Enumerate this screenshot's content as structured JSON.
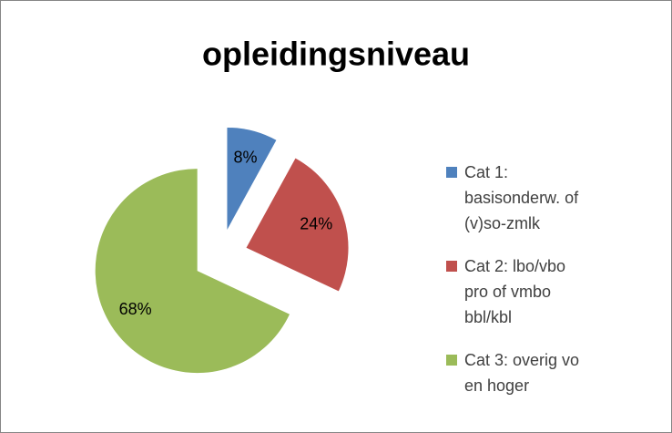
{
  "chart_data": {
    "type": "pie",
    "title": "opleidingsniveau",
    "categories": [
      "Cat 1: basisonderw. of (v)so-zmlk",
      "Cat 2: lbo/vbo pro of vmbo bbl/kbl",
      "Cat 3: overig vo en hoger"
    ],
    "values": [
      8,
      24,
      68
    ],
    "value_labels": [
      "8%",
      "24%",
      "68%"
    ],
    "colors": [
      "#4f81bd",
      "#c0504d",
      "#9bbb59"
    ],
    "legend": "right"
  }
}
